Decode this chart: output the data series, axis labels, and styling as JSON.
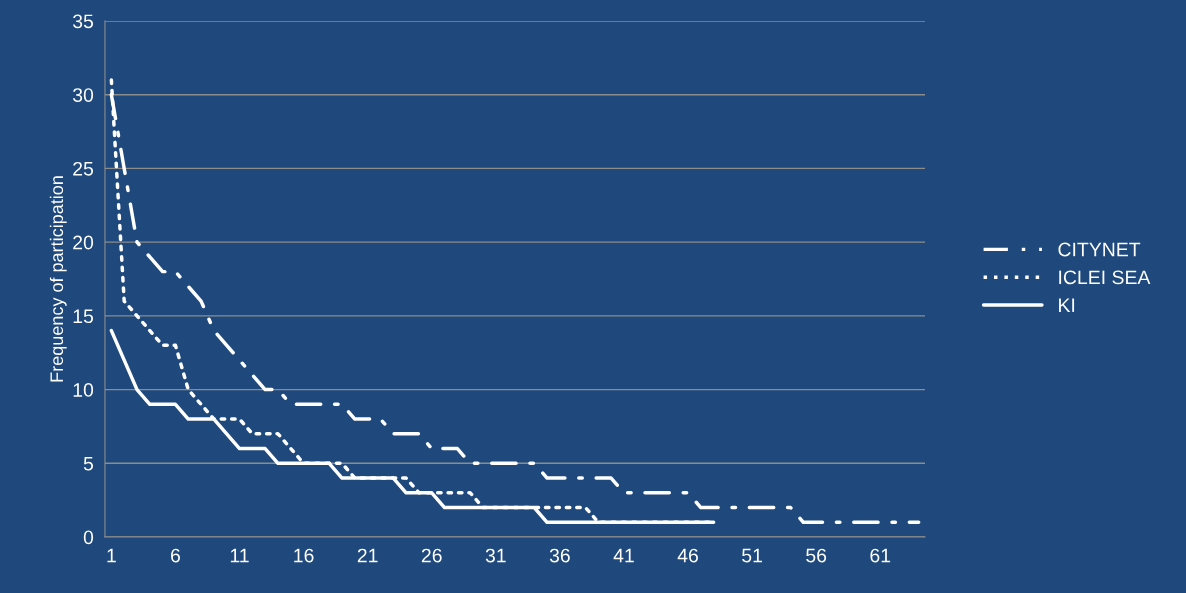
{
  "chart_data": {
    "type": "line",
    "ylabel": "Frequency of participation",
    "categories": [
      "1",
      null,
      null,
      null,
      null,
      "6",
      null,
      null,
      null,
      null,
      "11",
      null,
      null,
      null,
      null,
      "16",
      null,
      null,
      null,
      null,
      "21",
      null,
      null,
      null,
      null,
      "26",
      null,
      null,
      null,
      null,
      "31",
      null,
      null,
      null,
      null,
      "36",
      null,
      null,
      null,
      null,
      "41",
      null,
      null,
      null,
      null,
      "46",
      null,
      null,
      null,
      null,
      "51",
      null,
      null,
      null,
      null,
      "56",
      null,
      null,
      null,
      null,
      "61",
      null,
      null,
      null
    ],
    "series": [
      {
        "name": "CITYNET",
        "color": "#ffffff",
        "line_style": "dashed",
        "values": [
          30,
          25,
          20,
          19,
          18,
          18,
          17,
          16,
          14,
          13,
          12,
          11,
          10,
          10,
          9,
          9,
          9,
          9,
          9,
          8,
          8,
          8,
          7,
          7,
          7,
          6,
          6,
          6,
          5,
          5,
          5,
          5,
          5,
          5,
          4,
          4,
          4,
          4,
          4,
          4,
          3,
          3,
          3,
          3,
          3,
          3,
          2,
          2,
          2,
          2,
          2,
          2,
          2,
          2,
          1,
          1,
          1,
          1,
          1,
          1,
          1,
          1,
          1,
          1
        ]
      },
      {
        "name": "ICLEI SEA",
        "color": "#ffffff",
        "line_style": "dotted",
        "values": [
          31,
          16,
          15,
          14,
          13,
          13,
          10,
          9,
          8,
          8,
          8,
          7,
          7,
          7,
          6,
          5,
          5,
          5,
          5,
          4,
          4,
          4,
          4,
          4,
          3,
          3,
          3,
          3,
          3,
          2,
          2,
          2,
          2,
          2,
          2,
          2,
          2,
          2,
          1,
          1,
          1,
          1,
          1,
          1,
          1,
          1,
          1,
          1,
          null,
          null,
          null,
          null,
          null,
          null,
          null,
          null,
          null,
          null,
          null,
          null,
          null,
          null,
          null,
          null
        ]
      },
      {
        "name": "KI",
        "color": "#ffffff",
        "line_style": "solid",
        "values": [
          14,
          12,
          10,
          9,
          9,
          9,
          8,
          8,
          8,
          7,
          6,
          6,
          6,
          5,
          5,
          5,
          5,
          5,
          4,
          4,
          4,
          4,
          4,
          3,
          3,
          3,
          2,
          2,
          2,
          2,
          2,
          2,
          2,
          2,
          1,
          1,
          1,
          1,
          1,
          1,
          1,
          1,
          1,
          1,
          1,
          1,
          1,
          1,
          null,
          null,
          null,
          null,
          null,
          null,
          null,
          null,
          null,
          null,
          null,
          null,
          null,
          null,
          null,
          null
        ]
      }
    ],
    "ylim": [
      0,
      35
    ],
    "yticks": [
      0,
      5,
      10,
      15,
      20,
      25,
      30,
      35
    ],
    "grid": "y",
    "legend": "right",
    "marker": "none"
  }
}
